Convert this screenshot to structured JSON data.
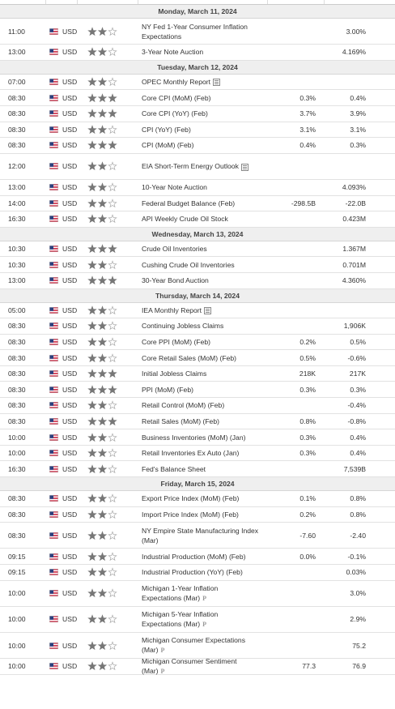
{
  "days": [
    {
      "date": "Monday, March 11, 2024",
      "events": [
        {
          "time": "11:00",
          "currency": "USD",
          "importance": 2,
          "event": "NY Fed 1-Year Consumer Inflation Expectations",
          "previous": "3.00%"
        },
        {
          "time": "13:00",
          "currency": "USD",
          "importance": 2,
          "event": "3-Year Note Auction",
          "previous": "4.169%"
        }
      ]
    },
    {
      "date": "Tuesday, March 12, 2024",
      "events": [
        {
          "time": "07:00",
          "currency": "USD",
          "importance": 2,
          "event": "OPEC Monthly Report",
          "report": true
        },
        {
          "time": "08:30",
          "currency": "USD",
          "importance": 3,
          "event": "Core CPI (MoM) (Feb)",
          "forecast": "0.3%",
          "previous": "0.4%"
        },
        {
          "time": "08:30",
          "currency": "USD",
          "importance": 3,
          "event": "Core CPI (YoY) (Feb)",
          "forecast": "3.7%",
          "previous": "3.9%"
        },
        {
          "time": "08:30",
          "currency": "USD",
          "importance": 2,
          "event": "CPI (YoY) (Feb)",
          "forecast": "3.1%",
          "previous": "3.1%"
        },
        {
          "time": "08:30",
          "currency": "USD",
          "importance": 3,
          "event": "CPI (MoM) (Feb)",
          "forecast": "0.4%",
          "previous": "0.3%"
        },
        {
          "time": "12:00",
          "currency": "USD",
          "importance": 2,
          "event": "EIA Short-Term Energy Outlook",
          "report": true,
          "wrap": true
        },
        {
          "time": "13:00",
          "currency": "USD",
          "importance": 2,
          "event": "10-Year Note Auction",
          "previous": "4.093%"
        },
        {
          "time": "14:00",
          "currency": "USD",
          "importance": 2,
          "event": "Federal Budget Balance (Feb)",
          "forecast": "-298.5B",
          "previous": "-22.0B"
        },
        {
          "time": "16:30",
          "currency": "USD",
          "importance": 2,
          "event": "API Weekly Crude Oil Stock",
          "previous": "0.423M"
        }
      ]
    },
    {
      "date": "Wednesday, March 13, 2024",
      "events": [
        {
          "time": "10:30",
          "currency": "USD",
          "importance": 3,
          "event": "Crude Oil Inventories",
          "previous": "1.367M"
        },
        {
          "time": "10:30",
          "currency": "USD",
          "importance": 2,
          "event": "Cushing Crude Oil Inventories",
          "previous": "0.701M"
        },
        {
          "time": "13:00",
          "currency": "USD",
          "importance": 3,
          "event": "30-Year Bond Auction",
          "previous": "4.360%"
        }
      ]
    },
    {
      "date": "Thursday, March 14, 2024",
      "events": [
        {
          "time": "05:00",
          "currency": "USD",
          "importance": 2,
          "event": "IEA Monthly Report",
          "report": true
        },
        {
          "time": "08:30",
          "currency": "USD",
          "importance": 2,
          "event": "Continuing Jobless Claims",
          "previous": "1,906K"
        },
        {
          "time": "08:30",
          "currency": "USD",
          "importance": 2,
          "event": "Core PPI (MoM) (Feb)",
          "forecast": "0.2%",
          "previous": "0.5%"
        },
        {
          "time": "08:30",
          "currency": "USD",
          "importance": 2,
          "event": "Core Retail Sales (MoM) (Feb)",
          "forecast": "0.5%",
          "previous": "-0.6%"
        },
        {
          "time": "08:30",
          "currency": "USD",
          "importance": 3,
          "event": "Initial Jobless Claims",
          "forecast": "218K",
          "previous": "217K"
        },
        {
          "time": "08:30",
          "currency": "USD",
          "importance": 3,
          "event": "PPI (MoM) (Feb)",
          "forecast": "0.3%",
          "previous": "0.3%"
        },
        {
          "time": "08:30",
          "currency": "USD",
          "importance": 2,
          "event": "Retail Control (MoM) (Feb)",
          "previous": "-0.4%"
        },
        {
          "time": "08:30",
          "currency": "USD",
          "importance": 3,
          "event": "Retail Sales (MoM) (Feb)",
          "forecast": "0.8%",
          "previous": "-0.8%"
        },
        {
          "time": "10:00",
          "currency": "USD",
          "importance": 2,
          "event": "Business Inventories (MoM) (Jan)",
          "forecast": "0.3%",
          "previous": "0.4%"
        },
        {
          "time": "10:00",
          "currency": "USD",
          "importance": 2,
          "event": "Retail Inventories Ex Auto (Jan)",
          "forecast": "0.3%",
          "previous": "0.4%"
        },
        {
          "time": "16:30",
          "currency": "USD",
          "importance": 2,
          "event": "Fed's Balance Sheet",
          "previous": "7,539B"
        }
      ]
    },
    {
      "date": "Friday, March 15, 2024",
      "events": [
        {
          "time": "08:30",
          "currency": "USD",
          "importance": 2,
          "event": "Export Price Index (MoM) (Feb)",
          "forecast": "0.1%",
          "previous": "0.8%"
        },
        {
          "time": "08:30",
          "currency": "USD",
          "importance": 2,
          "event": "Import Price Index (MoM) (Feb)",
          "forecast": "0.2%",
          "previous": "0.8%"
        },
        {
          "time": "08:30",
          "currency": "USD",
          "importance": 2,
          "event": "NY Empire State Manufacturing Index (Mar)",
          "forecast": "-7.60",
          "previous": "-2.40"
        },
        {
          "time": "09:15",
          "currency": "USD",
          "importance": 2,
          "event": "Industrial Production (MoM) (Feb)",
          "forecast": "0.0%",
          "previous": "-0.1%"
        },
        {
          "time": "09:15",
          "currency": "USD",
          "importance": 2,
          "event": "Industrial Production (YoY) (Feb)",
          "previous": "0.03%"
        },
        {
          "time": "10:00",
          "currency": "USD",
          "importance": 2,
          "event": "Michigan 1-Year Inflation Expectations (Mar)",
          "mark": "P",
          "previous": "3.0%"
        },
        {
          "time": "10:00",
          "currency": "USD",
          "importance": 2,
          "event": "Michigan 5-Year Inflation Expectations (Mar)",
          "mark": "P",
          "previous": "2.9%"
        },
        {
          "time": "10:00",
          "currency": "USD",
          "importance": 2,
          "event": "Michigan Consumer Expectations (Mar)",
          "mark": "P",
          "previous": "75.2"
        },
        {
          "time": "10:00",
          "currency": "USD",
          "importance": 2,
          "event": "Michigan Consumer Sentiment (Mar)",
          "mark": "P",
          "forecast": "77.3",
          "previous": "76.9"
        }
      ]
    }
  ]
}
